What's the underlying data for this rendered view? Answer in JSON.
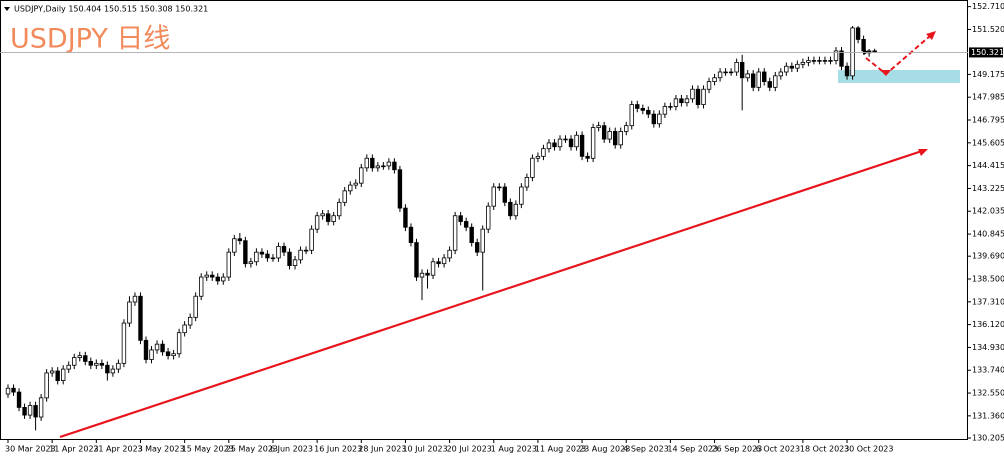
{
  "chart_data": {
    "type": "candlestick",
    "header": "USDJPY,Daily  150.404 150.515 150.308 150.321",
    "title": "USDJPY 日线",
    "current_price": 150.321,
    "ylim": [
      130.1,
      152.9
    ],
    "yticks": [
      {
        "value": 152.71,
        "label": "152.710"
      },
      {
        "value": 151.52,
        "label": "151.520"
      },
      149.175,
      147.985,
      146.795,
      145.605,
      144.415,
      143.225,
      142.035,
      140.845,
      {
        "value": 139.69,
        "label": "139.690"
      },
      {
        "value": 138.5,
        "label": "138.500"
      },
      {
        "value": 137.31,
        "label": "137.310"
      },
      {
        "value": 136.12,
        "label": "136.120"
      },
      {
        "value": 134.93,
        "label": "134.930"
      },
      {
        "value": 133.74,
        "label": "133.740"
      },
      {
        "value": 132.55,
        "label": "132.550"
      },
      {
        "value": 131.36,
        "label": "131.360"
      },
      130.205
    ],
    "categories": [
      "30 Mar 2023",
      null,
      null,
      null,
      null,
      null,
      null,
      null,
      "11 Apr 2023",
      null,
      null,
      null,
      null,
      null,
      null,
      null,
      "21 Apr 2023",
      null,
      null,
      null,
      null,
      null,
      null,
      null,
      "3 May 2023",
      null,
      null,
      null,
      null,
      null,
      null,
      null,
      "15 May 2023",
      null,
      null,
      null,
      null,
      null,
      null,
      null,
      "25 May 2023",
      null,
      null,
      null,
      null,
      null,
      null,
      null,
      "6 Jun 2023",
      null,
      null,
      null,
      null,
      null,
      null,
      null,
      "16 Jun 2023",
      null,
      null,
      null,
      null,
      null,
      null,
      null,
      "28 Jun 2023",
      null,
      null,
      null,
      null,
      null,
      null,
      null,
      "10 Jul 2023",
      null,
      null,
      null,
      null,
      null,
      null,
      null,
      "20 Jul 2023",
      null,
      null,
      null,
      null,
      null,
      null,
      null,
      "1 Aug 2023",
      null,
      null,
      null,
      null,
      null,
      null,
      null,
      "11 Aug 2023",
      null,
      null,
      null,
      null,
      null,
      null,
      null,
      "23 Aug 2023",
      null,
      null,
      null,
      null,
      null,
      null,
      null,
      "4 Sep 2023",
      null,
      null,
      null,
      null,
      null,
      null,
      null,
      "14 Sep 2023",
      null,
      null,
      null,
      null,
      null,
      null,
      null,
      "26 Sep 2023",
      null,
      null,
      null,
      null,
      null,
      null,
      null,
      "6 Oct 2023",
      null,
      null,
      null,
      null,
      null,
      null,
      null,
      "18 Oct 2023",
      null,
      null,
      null,
      null,
      null,
      null,
      null,
      "30 Oct 2023",
      null,
      null,
      null,
      null,
      null
    ],
    "candles": [
      [
        132.5,
        133.0,
        132.3,
        132.8
      ],
      [
        132.8,
        133.0,
        132.4,
        132.6
      ],
      [
        132.6,
        132.8,
        131.6,
        131.8
      ],
      [
        131.8,
        132.0,
        131.2,
        131.4
      ],
      [
        131.4,
        132.1,
        131.2,
        131.9
      ],
      [
        131.9,
        132.1,
        130.6,
        131.3
      ],
      [
        131.3,
        132.5,
        131.1,
        132.3
      ],
      [
        132.3,
        133.8,
        132.1,
        133.6
      ],
      [
        133.6,
        133.9,
        133.4,
        133.7
      ],
      [
        133.7,
        133.9,
        133.0,
        133.2
      ],
      [
        133.2,
        134.0,
        133.0,
        133.8
      ],
      [
        133.8,
        134.2,
        133.6,
        134.0
      ],
      [
        134.0,
        134.6,
        133.8,
        134.4
      ],
      [
        134.4,
        134.7,
        134.2,
        134.5
      ],
      [
        134.5,
        134.7,
        134.0,
        134.2
      ],
      [
        134.2,
        134.4,
        133.8,
        134.0
      ],
      [
        134.0,
        134.3,
        133.8,
        134.1
      ],
      [
        134.1,
        134.3,
        133.8,
        134.0
      ],
      [
        134.0,
        134.2,
        133.2,
        133.6
      ],
      [
        133.6,
        134.0,
        133.4,
        133.8
      ],
      [
        133.8,
        134.3,
        133.6,
        134.1
      ],
      [
        134.1,
        136.4,
        133.9,
        136.2
      ],
      [
        136.2,
        137.6,
        136.0,
        137.3
      ],
      [
        137.3,
        137.8,
        137.1,
        137.6
      ],
      [
        137.6,
        137.8,
        135.1,
        135.3
      ],
      [
        135.3,
        135.5,
        134.1,
        134.3
      ],
      [
        134.3,
        135.0,
        134.1,
        134.8
      ],
      [
        134.8,
        135.3,
        134.6,
        135.1
      ],
      [
        135.1,
        135.3,
        134.5,
        134.7
      ],
      [
        134.7,
        134.9,
        134.3,
        134.5
      ],
      [
        134.5,
        134.8,
        134.3,
        134.6
      ],
      [
        134.6,
        135.9,
        134.4,
        135.7
      ],
      [
        135.7,
        136.3,
        135.5,
        136.1
      ],
      [
        136.1,
        136.7,
        135.9,
        136.5
      ],
      [
        136.5,
        137.8,
        136.3,
        137.6
      ],
      [
        137.6,
        138.8,
        137.4,
        138.6
      ],
      [
        138.6,
        138.9,
        138.4,
        138.7
      ],
      [
        138.7,
        138.9,
        138.4,
        138.6
      ],
      [
        138.6,
        138.8,
        138.2,
        138.4
      ],
      [
        138.4,
        138.8,
        138.2,
        138.6
      ],
      [
        138.6,
        140.1,
        138.4,
        139.9
      ],
      [
        139.9,
        140.8,
        139.7,
        140.6
      ],
      [
        140.6,
        140.9,
        140.3,
        140.5
      ],
      [
        140.5,
        140.7,
        139.1,
        139.3
      ],
      [
        139.3,
        139.6,
        139.1,
        139.4
      ],
      [
        139.4,
        140.1,
        139.2,
        139.9
      ],
      [
        139.9,
        140.1,
        139.6,
        139.8
      ],
      [
        139.8,
        140.0,
        139.4,
        139.6
      ],
      [
        139.6,
        139.8,
        139.4,
        139.6
      ],
      [
        139.6,
        140.4,
        139.4,
        140.2
      ],
      [
        140.2,
        140.4,
        139.7,
        139.9
      ],
      [
        139.9,
        140.1,
        139.0,
        139.2
      ],
      [
        139.2,
        139.7,
        139.0,
        139.5
      ],
      [
        139.5,
        140.2,
        139.3,
        140.0
      ],
      [
        140.0,
        140.2,
        139.8,
        140.0
      ],
      [
        140.0,
        141.3,
        139.8,
        141.1
      ],
      [
        141.1,
        142.0,
        140.9,
        141.8
      ],
      [
        141.8,
        142.1,
        141.6,
        141.9
      ],
      [
        141.9,
        142.1,
        141.3,
        141.5
      ],
      [
        141.5,
        142.0,
        141.3,
        141.8
      ],
      [
        141.8,
        142.7,
        141.6,
        142.5
      ],
      [
        142.5,
        143.3,
        142.3,
        143.1
      ],
      [
        143.1,
        143.6,
        142.9,
        143.4
      ],
      [
        143.4,
        143.7,
        143.2,
        143.5
      ],
      [
        143.5,
        144.5,
        143.3,
        144.3
      ],
      [
        144.3,
        145.0,
        144.1,
        144.8
      ],
      [
        144.8,
        145.0,
        144.1,
        144.3
      ],
      [
        144.3,
        144.6,
        144.1,
        144.4
      ],
      [
        144.4,
        144.6,
        144.2,
        144.4
      ],
      [
        144.4,
        144.8,
        144.2,
        144.6
      ],
      [
        144.6,
        144.8,
        144.0,
        144.2
      ],
      [
        144.2,
        144.4,
        142.0,
        142.2
      ],
      [
        142.2,
        142.4,
        141.0,
        141.2
      ],
      [
        141.2,
        141.4,
        140.2,
        140.4
      ],
      [
        140.4,
        140.6,
        138.4,
        138.6
      ],
      [
        138.6,
        139.0,
        137.4,
        138.8
      ],
      [
        138.8,
        139.0,
        138.0,
        138.7
      ],
      [
        138.7,
        139.6,
        138.5,
        139.4
      ],
      [
        139.4,
        139.6,
        139.1,
        139.3
      ],
      [
        139.3,
        139.8,
        139.1,
        139.6
      ],
      [
        139.6,
        140.2,
        139.4,
        140.0
      ],
      [
        140.0,
        142.0,
        139.8,
        141.8
      ],
      [
        141.8,
        142.0,
        141.3,
        141.5
      ],
      [
        141.5,
        141.7,
        141.0,
        141.2
      ],
      [
        141.2,
        141.4,
        140.2,
        140.4
      ],
      [
        140.4,
        140.6,
        139.7,
        139.9
      ],
      [
        139.9,
        141.3,
        137.9,
        141.1
      ],
      [
        141.1,
        142.5,
        140.9,
        142.3
      ],
      [
        142.3,
        143.5,
        142.1,
        143.3
      ],
      [
        143.3,
        143.5,
        143.1,
        143.3
      ],
      [
        143.3,
        143.5,
        142.3,
        142.5
      ],
      [
        142.5,
        142.7,
        141.6,
        141.8
      ],
      [
        141.8,
        142.6,
        141.6,
        142.4
      ],
      [
        142.4,
        143.5,
        142.2,
        143.3
      ],
      [
        143.3,
        144.0,
        143.1,
        143.8
      ],
      [
        143.8,
        145.0,
        143.6,
        144.8
      ],
      [
        144.8,
        145.1,
        144.6,
        144.9
      ],
      [
        144.9,
        145.5,
        144.7,
        145.3
      ],
      [
        145.3,
        145.8,
        145.1,
        145.6
      ],
      [
        145.6,
        145.8,
        145.2,
        145.4
      ],
      [
        145.4,
        146.0,
        145.2,
        145.8
      ],
      [
        145.8,
        146.0,
        145.6,
        145.8
      ],
      [
        145.8,
        146.0,
        145.2,
        145.4
      ],
      [
        145.4,
        146.2,
        145.2,
        146.0
      ],
      [
        146.0,
        146.2,
        144.7,
        144.9
      ],
      [
        144.9,
        145.1,
        144.6,
        144.8
      ],
      [
        144.8,
        146.6,
        144.6,
        146.4
      ],
      [
        146.4,
        146.7,
        146.2,
        146.5
      ],
      [
        146.5,
        146.7,
        145.6,
        145.8
      ],
      [
        145.8,
        146.4,
        145.6,
        146.2
      ],
      [
        146.2,
        146.4,
        145.3,
        145.5
      ],
      [
        145.5,
        146.4,
        145.3,
        146.2
      ],
      [
        146.2,
        146.7,
        146.0,
        146.5
      ],
      [
        146.5,
        147.8,
        146.3,
        147.6
      ],
      [
        147.6,
        147.8,
        147.2,
        147.4
      ],
      [
        147.4,
        147.6,
        147.1,
        147.3
      ],
      [
        147.3,
        147.5,
        146.9,
        147.1
      ],
      [
        147.1,
        147.3,
        146.4,
        146.6
      ],
      [
        146.6,
        147.3,
        146.4,
        147.1
      ],
      [
        147.1,
        147.7,
        146.9,
        147.5
      ],
      [
        147.5,
        147.7,
        147.3,
        147.5
      ],
      [
        147.5,
        148.1,
        147.3,
        147.9
      ],
      [
        147.9,
        148.1,
        147.5,
        147.7
      ],
      [
        147.7,
        148.1,
        147.5,
        147.9
      ],
      [
        147.9,
        148.6,
        147.7,
        148.4
      ],
      [
        148.4,
        148.6,
        147.4,
        147.6
      ],
      [
        147.6,
        148.6,
        147.4,
        148.4
      ],
      [
        148.4,
        149.0,
        148.2,
        148.8
      ],
      [
        148.8,
        149.2,
        148.6,
        149.0
      ],
      [
        149.0,
        149.5,
        148.8,
        149.3
      ],
      [
        149.3,
        149.5,
        149.1,
        149.3
      ],
      [
        149.3,
        149.5,
        149.1,
        149.3
      ],
      [
        149.3,
        150.0,
        149.1,
        149.8
      ],
      [
        149.8,
        150.2,
        147.3,
        149.0
      ],
      [
        149.0,
        149.4,
        148.8,
        149.2
      ],
      [
        149.2,
        149.4,
        148.3,
        148.5
      ],
      [
        148.5,
        149.5,
        148.3,
        149.3
      ],
      [
        149.3,
        149.5,
        148.6,
        148.8
      ],
      [
        148.8,
        149.0,
        148.3,
        148.5
      ],
      [
        148.5,
        149.3,
        148.3,
        149.1
      ],
      [
        149.1,
        149.5,
        148.9,
        149.3
      ],
      [
        149.3,
        149.8,
        149.1,
        149.6
      ],
      [
        149.6,
        149.8,
        149.3,
        149.5
      ],
      [
        149.5,
        149.9,
        149.3,
        149.7
      ],
      [
        149.7,
        150.0,
        149.5,
        149.8
      ],
      [
        149.8,
        150.1,
        149.6,
        149.9
      ],
      [
        149.9,
        150.1,
        149.7,
        149.9
      ],
      [
        149.9,
        150.1,
        149.7,
        149.9
      ],
      [
        149.9,
        150.1,
        149.7,
        149.9
      ],
      [
        149.9,
        150.1,
        149.7,
        149.9
      ],
      [
        149.9,
        150.6,
        149.7,
        150.4
      ],
      [
        150.4,
        150.6,
        149.4,
        149.6
      ],
      [
        149.6,
        149.8,
        148.9,
        149.1
      ],
      [
        149.1,
        151.7,
        148.9,
        151.6
      ],
      [
        151.6,
        151.7,
        150.8,
        151.0
      ],
      [
        151.0,
        151.2,
        150.2,
        150.4
      ],
      [
        150.4,
        150.5,
        150.1,
        150.3
      ],
      [
        150.404,
        150.515,
        150.308,
        150.321
      ]
    ]
  }
}
